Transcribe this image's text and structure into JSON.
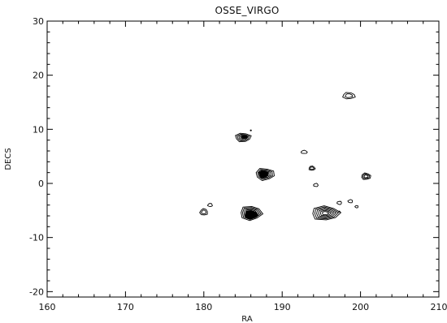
{
  "chart_data": {
    "type": "contour",
    "title": "OSSE_VIRGO",
    "xlabel": "RA",
    "ylabel": "DECS",
    "xlim": [
      160,
      210
    ],
    "ylim": [
      -21,
      30
    ],
    "xticks": [
      160,
      170,
      180,
      190,
      200,
      210
    ],
    "yticks": [
      -20,
      -10,
      0,
      10,
      20,
      30
    ],
    "grid": false,
    "legend": "none",
    "line_color": "#000000",
    "contour_sources": [
      {
        "ra": 185.0,
        "dec": 8.5,
        "rx": 1.0,
        "ry": 0.8,
        "levels": 4
      },
      {
        "ra": 187.8,
        "dec": 1.7,
        "rx": 1.2,
        "ry": 1.1,
        "levels": 5
      },
      {
        "ra": 186.0,
        "dec": -5.5,
        "rx": 1.4,
        "ry": 1.3,
        "levels": 6
      },
      {
        "ra": 195.5,
        "dec": -5.5,
        "rx": 1.8,
        "ry": 1.3,
        "levels": 6
      },
      {
        "ra": 200.7,
        "dec": 1.3,
        "rx": 0.6,
        "ry": 0.6,
        "levels": 3
      },
      {
        "ra": 198.5,
        "dec": 16.2,
        "rx": 0.8,
        "ry": 0.6,
        "levels": 2
      },
      {
        "ra": 193.8,
        "dec": 2.8,
        "rx": 0.4,
        "ry": 0.4,
        "levels": 2
      },
      {
        "ra": 192.8,
        "dec": 5.8,
        "rx": 0.4,
        "ry": 0.3,
        "levels": 1
      },
      {
        "ra": 180.0,
        "dec": -5.3,
        "rx": 0.5,
        "ry": 0.6,
        "levels": 2
      },
      {
        "ra": 180.8,
        "dec": -4.0,
        "rx": 0.3,
        "ry": 0.3,
        "levels": 1
      },
      {
        "ra": 194.3,
        "dec": -0.3,
        "rx": 0.3,
        "ry": 0.3,
        "levels": 1
      },
      {
        "ra": 198.7,
        "dec": -3.3,
        "rx": 0.3,
        "ry": 0.3,
        "levels": 1
      },
      {
        "ra": 199.5,
        "dec": -4.3,
        "rx": 0.2,
        "ry": 0.1,
        "levels": 1
      },
      {
        "ra": 197.3,
        "dec": -3.6,
        "rx": 0.3,
        "ry": 0.3,
        "levels": 1
      }
    ],
    "filled_cores": [
      {
        "ra": 187.6,
        "dec": 1.7,
        "rx": 0.6,
        "ry": 0.7
      },
      {
        "ra": 186.0,
        "dec": -5.8,
        "rx": 0.8,
        "ry": 0.8
      },
      {
        "ra": 185.2,
        "dec": 8.6,
        "rx": 0.4,
        "ry": 0.3
      }
    ],
    "dots": [
      {
        "ra": 186.0,
        "dec": 9.8
      },
      {
        "ra": 197.3,
        "dec": -5.2
      }
    ]
  }
}
